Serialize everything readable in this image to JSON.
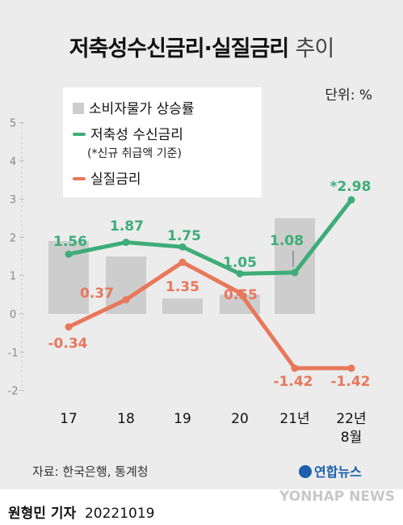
{
  "title": {
    "main": "저축성수신금리·실질금리",
    "suffix": "추이"
  },
  "unit": "단위: %",
  "legend": {
    "cpi": "소비자물가 상승률",
    "deposit": "저축성 수신금리",
    "deposit_note": "(*신규 취급액 기준)",
    "real": "실질금리"
  },
  "source": "자료: 한국은행, 통계청",
  "brand": "연합뉴스",
  "watermark": "YONHAP NEWS",
  "credit": {
    "name": "원형민 기자",
    "date": "20221019"
  },
  "colors": {
    "cpi": "#cdcdcd",
    "deposit": "#3ead78",
    "real": "#e8775b",
    "panel": "#ececec"
  },
  "chart_data": {
    "type": "bar",
    "categories": [
      "17",
      "18",
      "19",
      "20",
      "21년",
      "22년 8월"
    ],
    "yticks": [
      "5",
      "4",
      "3",
      "2",
      "1",
      "0",
      "-1",
      "-2"
    ],
    "ylim": [
      -2,
      5
    ],
    "series": [
      {
        "name": "소비자물가 상승률",
        "type": "bar",
        "values": [
          1.9,
          1.5,
          0.4,
          0.5,
          2.5,
          null
        ]
      },
      {
        "name": "저축성 수신금리",
        "type": "line",
        "values": [
          1.56,
          1.87,
          1.75,
          1.05,
          1.08,
          2.98
        ],
        "labels": [
          "1.56",
          "1.87",
          "1.75",
          "1.05",
          "1.08",
          "*2.98"
        ]
      },
      {
        "name": "실질금리",
        "type": "line",
        "values": [
          -0.34,
          0.37,
          1.35,
          0.55,
          -1.42,
          -1.42
        ],
        "labels": [
          "-0.34",
          "0.37",
          "1.35",
          "0.55",
          "-1.42",
          "-1.42"
        ]
      }
    ]
  }
}
